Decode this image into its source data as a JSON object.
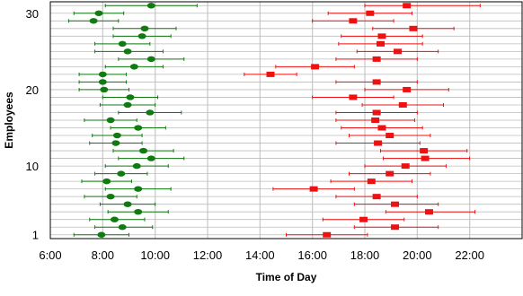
{
  "chart_data": {
    "type": "scatter",
    "xlabel": "Time of Day",
    "ylabel": "Employees",
    "xlim": [
      6,
      24
    ],
    "ylim": [
      0.5,
      31.5
    ],
    "x_ticks": [
      {
        "value": 6,
        "label": "6:00"
      },
      {
        "value": 8,
        "label": "8:00"
      },
      {
        "value": 10,
        "label": "10:00"
      },
      {
        "value": 12,
        "label": "12:00"
      },
      {
        "value": 14,
        "label": "14:00"
      },
      {
        "value": 16,
        "label": "16:00"
      },
      {
        "value": 18,
        "label": "18:00"
      },
      {
        "value": 20,
        "label": "20:00"
      },
      {
        "value": 22,
        "label": "22:00"
      }
    ],
    "y_ticks": [
      {
        "value": 1,
        "label": "1"
      },
      {
        "value": 10,
        "label": "10"
      },
      {
        "value": 20,
        "label": "20"
      },
      {
        "value": 30,
        "label": "30"
      }
    ],
    "grid": {
      "vertical": true,
      "horizontal": true
    },
    "colors": {
      "start": "#117a11",
      "end": "#ee1111",
      "grid": "#c8c8c8",
      "row_line": "#bdbdbd"
    },
    "series": [
      {
        "markers": "ellipse",
        "points": [
          {
            "employee": 1,
            "x": 7.95,
            "xerr_low": 6.9,
            "xerr_high": 9.0
          },
          {
            "employee": 2,
            "x": 8.75,
            "xerr_low": 7.7,
            "xerr_high": 9.9
          },
          {
            "employee": 3,
            "x": 8.45,
            "xerr_low": 7.5,
            "xerr_high": 9.6
          },
          {
            "employee": 4,
            "x": 9.35,
            "xerr_low": 8.2,
            "xerr_high": 10.5
          },
          {
            "employee": 5,
            "x": 8.95,
            "xerr_low": 7.9,
            "xerr_high": 10.0
          },
          {
            "employee": 6,
            "x": 8.3,
            "xerr_low": 7.3,
            "xerr_high": 9.3
          },
          {
            "employee": 7,
            "x": 9.35,
            "xerr_low": 8.1,
            "xerr_high": 10.6
          },
          {
            "employee": 8,
            "x": 8.15,
            "xerr_low": 7.2,
            "xerr_high": 9.1
          },
          {
            "employee": 9,
            "x": 8.7,
            "xerr_low": 7.7,
            "xerr_high": 9.7
          },
          {
            "employee": 10,
            "x": 9.3,
            "xerr_low": 8.1,
            "xerr_high": 10.5
          },
          {
            "employee": 11,
            "x": 9.85,
            "xerr_low": 8.6,
            "xerr_high": 11.1
          },
          {
            "employee": 12,
            "x": 9.55,
            "xerr_low": 8.4,
            "xerr_high": 10.7
          },
          {
            "employee": 13,
            "x": 8.5,
            "xerr_low": 7.5,
            "xerr_high": 9.5
          },
          {
            "employee": 14,
            "x": 8.55,
            "xerr_low": 7.6,
            "xerr_high": 9.5
          },
          {
            "employee": 15,
            "x": 9.35,
            "xerr_low": 8.3,
            "xerr_high": 10.4
          },
          {
            "employee": 16,
            "x": 8.3,
            "xerr_low": 7.3,
            "xerr_high": 9.3
          },
          {
            "employee": 17,
            "x": 9.8,
            "xerr_low": 8.6,
            "xerr_high": 11.0
          },
          {
            "employee": 18,
            "x": 8.95,
            "xerr_low": 7.9,
            "xerr_high": 10.0
          },
          {
            "employee": 19,
            "x": 9.05,
            "xerr_low": 8.0,
            "xerr_high": 10.1
          },
          {
            "employee": 20,
            "x": 8.05,
            "xerr_low": 7.1,
            "xerr_high": 9.0
          },
          {
            "employee": 21,
            "x": 8.0,
            "xerr_low": 7.1,
            "xerr_high": 8.9
          },
          {
            "employee": 22,
            "x": 8.0,
            "xerr_low": 7.1,
            "xerr_high": 8.9
          },
          {
            "employee": 23,
            "x": 9.2,
            "xerr_low": 8.1,
            "xerr_high": 10.3
          },
          {
            "employee": 24,
            "x": 9.85,
            "xerr_low": 8.6,
            "xerr_high": 11.1
          },
          {
            "employee": 25,
            "x": 8.95,
            "xerr_low": 7.7,
            "xerr_high": 10.3
          },
          {
            "employee": 26,
            "x": 8.75,
            "xerr_low": 7.7,
            "xerr_high": 9.8
          },
          {
            "employee": 27,
            "x": 9.5,
            "xerr_low": 8.4,
            "xerr_high": 10.6
          },
          {
            "employee": 28,
            "x": 9.6,
            "xerr_low": 8.4,
            "xerr_high": 10.8
          },
          {
            "employee": 29,
            "x": 7.65,
            "xerr_low": 6.7,
            "xerr_high": 8.6
          },
          {
            "employee": 30,
            "x": 7.85,
            "xerr_low": 6.9,
            "xerr_high": 8.8
          },
          {
            "employee": 31,
            "x": 9.85,
            "xerr_low": 8.1,
            "xerr_high": 11.6
          }
        ]
      },
      {
        "markers": "square",
        "points": [
          {
            "employee": 1,
            "x": 16.55,
            "xerr_low": 15.0,
            "xerr_high": 18.1
          },
          {
            "employee": 2,
            "x": 19.15,
            "xerr_low": 17.6,
            "xerr_high": 20.8
          },
          {
            "employee": 3,
            "x": 17.95,
            "xerr_low": 16.4,
            "xerr_high": 19.5
          },
          {
            "employee": 4,
            "x": 20.45,
            "xerr_low": 18.8,
            "xerr_high": 22.2
          },
          {
            "employee": 5,
            "x": 19.15,
            "xerr_low": 17.6,
            "xerr_high": 20.8
          },
          {
            "employee": 6,
            "x": 18.45,
            "xerr_low": 16.9,
            "xerr_high": 20.0
          },
          {
            "employee": 7,
            "x": 16.05,
            "xerr_low": 14.5,
            "xerr_high": 17.6
          },
          {
            "employee": 8,
            "x": 18.25,
            "xerr_low": 16.7,
            "xerr_high": 19.8
          },
          {
            "employee": 9,
            "x": 18.95,
            "xerr_low": 17.4,
            "xerr_high": 20.5
          },
          {
            "employee": 10,
            "x": 19.55,
            "xerr_low": 18.0,
            "xerr_high": 21.1
          },
          {
            "employee": 11,
            "x": 20.3,
            "xerr_low": 18.7,
            "xerr_high": 22.0
          },
          {
            "employee": 12,
            "x": 20.25,
            "xerr_low": 18.6,
            "xerr_high": 21.9
          },
          {
            "employee": 13,
            "x": 18.5,
            "xerr_low": 16.9,
            "xerr_high": 20.1
          },
          {
            "employee": 14,
            "x": 18.95,
            "xerr_low": 17.4,
            "xerr_high": 20.5
          },
          {
            "employee": 15,
            "x": 18.65,
            "xerr_low": 17.1,
            "xerr_high": 20.2
          },
          {
            "employee": 16,
            "x": 18.4,
            "xerr_low": 16.9,
            "xerr_high": 19.9
          },
          {
            "employee": 17,
            "x": 18.45,
            "xerr_low": 16.9,
            "xerr_high": 20.0
          },
          {
            "employee": 18,
            "x": 19.45,
            "xerr_low": 17.9,
            "xerr_high": 21.0
          },
          {
            "employee": 19,
            "x": 17.55,
            "xerr_low": 16.0,
            "xerr_high": 19.1
          },
          {
            "employee": 20,
            "x": 19.6,
            "xerr_low": 18.0,
            "xerr_high": 21.2
          },
          {
            "employee": 21,
            "x": 18.45,
            "xerr_low": 16.9,
            "xerr_high": 20.0
          },
          {
            "employee": 22,
            "x": 14.4,
            "xerr_low": 13.4,
            "xerr_high": 15.4
          },
          {
            "employee": 23,
            "x": 16.1,
            "xerr_low": 14.6,
            "xerr_high": 17.6
          },
          {
            "employee": 24,
            "x": 18.45,
            "xerr_low": 16.9,
            "xerr_high": 20.0
          },
          {
            "employee": 25,
            "x": 19.25,
            "xerr_low": 17.7,
            "xerr_high": 20.8
          },
          {
            "employee": 26,
            "x": 18.6,
            "xerr_low": 17.0,
            "xerr_high": 20.2
          },
          {
            "employee": 27,
            "x": 18.65,
            "xerr_low": 17.1,
            "xerr_high": 20.2
          },
          {
            "employee": 28,
            "x": 19.85,
            "xerr_low": 18.3,
            "xerr_high": 21.4
          },
          {
            "employee": 29,
            "x": 17.55,
            "xerr_low": 16.0,
            "xerr_high": 19.1
          },
          {
            "employee": 30,
            "x": 18.2,
            "xerr_low": 16.6,
            "xerr_high": 19.8
          },
          {
            "employee": 31,
            "x": 19.6,
            "xerr_low": 18.0,
            "xerr_high": 22.4
          }
        ]
      }
    ]
  }
}
